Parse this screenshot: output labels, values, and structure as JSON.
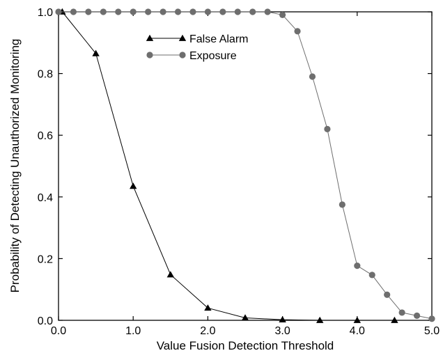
{
  "chart_data": {
    "type": "line",
    "title": "",
    "xlabel": "Value Fusion Detection Threshold",
    "ylabel": "Probability of Detecting Unauthorized Monitoring",
    "xlim": [
      0.0,
      5.0
    ],
    "ylim": [
      0.0,
      1.0
    ],
    "x_ticks": [
      "0.0",
      "1.0",
      "2.0",
      "3.0",
      "4.0",
      "5.0"
    ],
    "y_ticks": [
      "0.0",
      "0.2",
      "0.4",
      "0.6",
      "0.8",
      "1.0"
    ],
    "grid": false,
    "legend_position": "top-center",
    "series": [
      {
        "name": "False Alarm",
        "marker": "triangle",
        "color": "#000000",
        "x": [
          0.05,
          0.5,
          1.0,
          1.5,
          2.0,
          2.5,
          3.0,
          3.5,
          4.0,
          4.5
        ],
        "y": [
          1.0,
          0.865,
          0.435,
          0.148,
          0.04,
          0.008,
          0.002,
          0.0,
          0.0,
          0.0
        ]
      },
      {
        "name": "Exposure",
        "marker": "circle",
        "color": "#6e6e6e",
        "x": [
          0.0,
          0.2,
          0.4,
          0.6,
          0.8,
          1.0,
          1.2,
          1.4,
          1.6,
          1.8,
          2.0,
          2.2,
          2.4,
          2.6,
          2.8,
          3.0,
          3.2,
          3.4,
          3.6,
          3.8,
          4.0,
          4.2,
          4.4,
          4.6,
          4.8,
          5.0
        ],
        "y": [
          1.0,
          1.0,
          1.0,
          1.0,
          1.0,
          1.0,
          1.0,
          1.0,
          1.0,
          1.0,
          1.0,
          1.0,
          1.0,
          1.0,
          1.0,
          0.99,
          0.937,
          0.79,
          0.62,
          0.375,
          0.177,
          0.147,
          0.083,
          0.025,
          0.015,
          0.005
        ]
      }
    ]
  }
}
